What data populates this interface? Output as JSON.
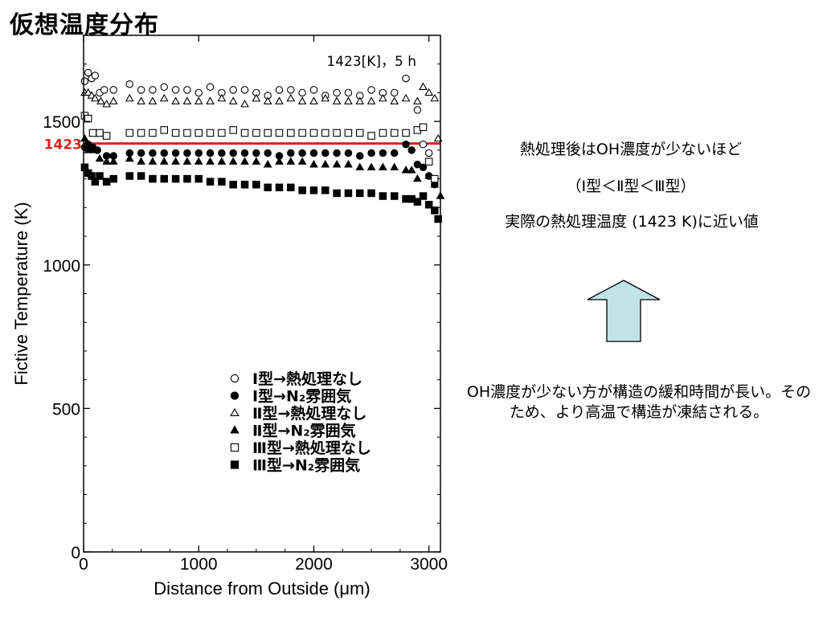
{
  "slide_title": "仮想温度分布",
  "notes": {
    "line1": "熱処理後はOH濃度が少ないほど",
    "line2": "（Ⅰ型＜Ⅱ型＜Ⅲ型）",
    "line3": "実際の熱処理温度 (1423 K)に近い値",
    "explanation": "OH濃度が少ない方が構造の緩和時間が長い。そのため、より高温で構造が凍結される。"
  },
  "colors": {
    "reference_line": "#e02020",
    "arrow_fill": "#bfe3e8"
  },
  "chart_data": {
    "type": "scatter",
    "annotation": "1423[K]，5 h",
    "xlabel": "Distance from Outside (μm)",
    "ylabel": "Fictive Temperature (K)",
    "xlim": [
      0,
      3100
    ],
    "ylim": [
      0,
      1800
    ],
    "x_ticks": [
      0,
      1000,
      2000,
      3000
    ],
    "y_ticks": [
      0,
      500,
      1000,
      1500
    ],
    "reference_line": {
      "value": 1423,
      "label": "1423"
    },
    "legend_placement": "lower-center",
    "series": [
      {
        "name": "Ⅰ型→熱処理なし",
        "marker": "circle-open",
        "x": [
          10,
          40,
          70,
          100,
          140,
          180,
          260,
          400,
          500,
          600,
          700,
          800,
          900,
          1000,
          1100,
          1200,
          1300,
          1400,
          1500,
          1600,
          1700,
          1800,
          1900,
          2000,
          2100,
          2200,
          2300,
          2400,
          2500,
          2600,
          2700,
          2800,
          2900,
          2950,
          3000
        ],
        "y": [
          1640,
          1670,
          1650,
          1660,
          1600,
          1610,
          1610,
          1630,
          1610,
          1610,
          1620,
          1610,
          1610,
          1600,
          1620,
          1600,
          1610,
          1610,
          1600,
          1590,
          1610,
          1610,
          1600,
          1610,
          1590,
          1600,
          1600,
          1590,
          1610,
          1600,
          1600,
          1650,
          1540,
          1420,
          1390
        ]
      },
      {
        "name": "Ⅰ型→N₂雰囲気",
        "marker": "circle-filled",
        "x": [
          10,
          40,
          80,
          120,
          200,
          260,
          400,
          500,
          600,
          700,
          800,
          900,
          1000,
          1100,
          1200,
          1300,
          1400,
          1500,
          1600,
          1700,
          1800,
          1900,
          2000,
          2100,
          2200,
          2300,
          2400,
          2500,
          2600,
          2700,
          2800,
          2850,
          2900,
          2950,
          3000,
          3050
        ],
        "y": [
          1410,
          1420,
          1410,
          1400,
          1380,
          1380,
          1390,
          1390,
          1390,
          1390,
          1390,
          1390,
          1390,
          1390,
          1390,
          1390,
          1390,
          1390,
          1390,
          1380,
          1390,
          1390,
          1390,
          1390,
          1390,
          1390,
          1380,
          1390,
          1390,
          1390,
          1420,
          1400,
          1350,
          1340,
          1310,
          1280
        ]
      },
      {
        "name": "Ⅱ型→熱処理なし",
        "marker": "triangle-open",
        "x": [
          10,
          40,
          70,
          100,
          150,
          200,
          260,
          400,
          500,
          600,
          700,
          800,
          900,
          1000,
          1100,
          1200,
          1300,
          1400,
          1500,
          1600,
          1700,
          1800,
          1900,
          2000,
          2100,
          2200,
          2300,
          2400,
          2500,
          2600,
          2700,
          2800,
          2900,
          2950,
          3000,
          3050,
          3080
        ],
        "y": [
          1600,
          1600,
          1590,
          1580,
          1570,
          1560,
          1570,
          1580,
          1570,
          1570,
          1580,
          1570,
          1570,
          1570,
          1570,
          1580,
          1570,
          1560,
          1580,
          1570,
          1570,
          1580,
          1570,
          1570,
          1580,
          1570,
          1570,
          1570,
          1570,
          1580,
          1570,
          1580,
          1570,
          1620,
          1600,
          1580,
          1440
        ]
      },
      {
        "name": "Ⅱ型→N₂雰囲気",
        "marker": "triangle-filled",
        "x": [
          10,
          40,
          80,
          140,
          200,
          260,
          400,
          500,
          600,
          700,
          800,
          900,
          1000,
          1100,
          1200,
          1300,
          1400,
          1500,
          1600,
          1700,
          1800,
          1900,
          2000,
          2100,
          2200,
          2300,
          2400,
          2500,
          2600,
          2700,
          2800,
          2850,
          2900,
          3000,
          3050,
          3100
        ],
        "y": [
          1440,
          1400,
          1400,
          1370,
          1360,
          1360,
          1370,
          1360,
          1360,
          1360,
          1360,
          1360,
          1360,
          1360,
          1360,
          1360,
          1360,
          1360,
          1350,
          1360,
          1360,
          1360,
          1350,
          1350,
          1350,
          1350,
          1340,
          1340,
          1340,
          1340,
          1330,
          1330,
          1300,
          1310,
          1280,
          1240
        ]
      },
      {
        "name": "Ⅲ型→熱処理なし",
        "marker": "square-open",
        "x": [
          10,
          40,
          80,
          140,
          200,
          400,
          500,
          600,
          700,
          800,
          900,
          1000,
          1100,
          1200,
          1300,
          1400,
          1500,
          1600,
          1700,
          1800,
          1900,
          2000,
          2100,
          2200,
          2300,
          2400,
          2500,
          2600,
          2700,
          2800,
          2900,
          2950,
          3000,
          3050
        ],
        "y": [
          1520,
          1510,
          1460,
          1460,
          1450,
          1460,
          1460,
          1460,
          1470,
          1460,
          1460,
          1460,
          1460,
          1460,
          1470,
          1460,
          1460,
          1460,
          1460,
          1460,
          1460,
          1460,
          1460,
          1460,
          1460,
          1460,
          1450,
          1460,
          1460,
          1460,
          1470,
          1480,
          1360,
          1300
        ]
      },
      {
        "name": "Ⅲ型→N₂雰囲気",
        "marker": "square-filled",
        "x": [
          10,
          40,
          70,
          100,
          140,
          200,
          260,
          400,
          500,
          600,
          700,
          800,
          900,
          1000,
          1100,
          1200,
          1300,
          1400,
          1500,
          1600,
          1700,
          1800,
          1900,
          2000,
          2100,
          2200,
          2300,
          2400,
          2500,
          2600,
          2700,
          2800,
          2850,
          2900,
          2950,
          3000,
          3050,
          3080
        ],
        "y": [
          1340,
          1320,
          1310,
          1290,
          1310,
          1290,
          1300,
          1310,
          1310,
          1300,
          1300,
          1300,
          1300,
          1300,
          1290,
          1290,
          1280,
          1280,
          1280,
          1270,
          1270,
          1270,
          1260,
          1260,
          1260,
          1250,
          1250,
          1250,
          1250,
          1240,
          1240,
          1230,
          1230,
          1220,
          1240,
          1210,
          1190,
          1160
        ]
      }
    ]
  }
}
